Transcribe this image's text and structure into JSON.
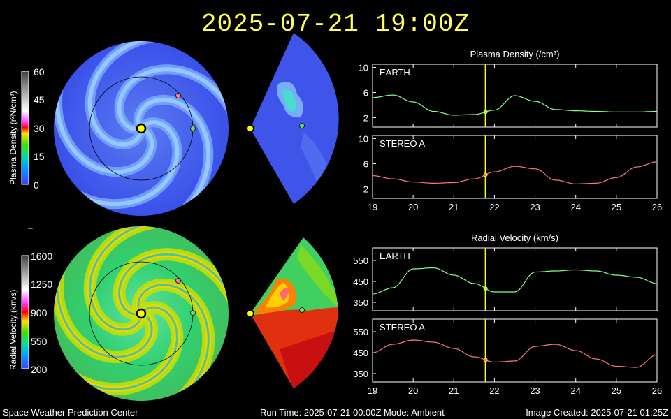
{
  "header": {
    "title": "2025-07-21  19:00Z"
  },
  "colorbars": {
    "density": {
      "label": "Plasma Density (r²N/cm³)",
      "ticks": [
        "60",
        "45",
        "30",
        "15",
        "0"
      ]
    },
    "velocity": {
      "label": "Radial Velocity (km/s)",
      "ticks": [
        "1600",
        "1250",
        "900",
        "550",
        "200"
      ]
    }
  },
  "footer": {
    "left": "Space Weather Prediction Center",
    "center": "Run Time: 2025-07-21 00:00Z  Mode: Ambient",
    "right": "Image Created: 2025-07-21 01:25Z"
  },
  "colors": {
    "earth_series": "#88ff88",
    "stereo_series": "#ff7777",
    "current_time_marker": "#ffff00",
    "sun": "#ffff00",
    "earth_marker": "#66dd66",
    "stereo_marker": "#ff7777"
  },
  "chart_data": [
    {
      "type": "line",
      "title": "Plasma Density (/cm³)",
      "panel": "EARTH",
      "x": [
        19,
        19.5,
        20,
        20.5,
        21,
        21.5,
        22,
        22.5,
        23,
        23.5,
        24,
        24.5,
        25,
        25.5,
        26
      ],
      "y": [
        5.2,
        5.6,
        4.5,
        3.0,
        2.4,
        2.5,
        3.2,
        5.5,
        4.6,
        3.3,
        3.1,
        3.0,
        2.9,
        2.9,
        3.0
      ],
      "ylim": [
        0.5,
        10.5
      ],
      "yticks": [
        "10",
        "6",
        "2"
      ],
      "marker_x": 21.78,
      "series_color": "#88ff88"
    },
    {
      "type": "line",
      "panel": "STEREO A",
      "x": [
        19,
        19.5,
        20,
        20.5,
        21,
        21.5,
        22,
        22.5,
        23,
        23.5,
        24,
        24.5,
        25,
        25.5,
        26
      ],
      "y": [
        4.1,
        3.6,
        3.1,
        2.9,
        3.0,
        3.6,
        4.7,
        5.6,
        5.2,
        3.4,
        2.8,
        2.9,
        3.8,
        5.5,
        6.3
      ],
      "ylim": [
        0.5,
        10.5
      ],
      "yticks": [
        "10",
        "6",
        "2"
      ],
      "xticks": [
        "19",
        "20",
        "21",
        "22",
        "23",
        "24",
        "25",
        "26"
      ],
      "marker_x": 21.78,
      "series_color": "#ff7777"
    },
    {
      "type": "line",
      "title": "Radial Velocity (km/s)",
      "panel": "EARTH",
      "x": [
        19,
        19.5,
        20,
        20.5,
        21,
        21.5,
        22,
        22.5,
        23,
        23.5,
        24,
        24.5,
        25,
        25.5,
        26
      ],
      "y": [
        390,
        420,
        510,
        515,
        480,
        440,
        400,
        400,
        495,
        500,
        505,
        500,
        480,
        470,
        440
      ],
      "ylim": [
        310,
        610
      ],
      "yticks": [
        "550",
        "450",
        "350"
      ],
      "marker_x": 21.78,
      "series_color": "#88ff88"
    },
    {
      "type": "line",
      "panel": "STEREO A",
      "x": [
        19,
        19.5,
        20,
        20.5,
        21,
        21.5,
        22,
        22.5,
        23,
        23.5,
        24,
        24.5,
        25,
        25.5,
        26
      ],
      "y": [
        450,
        490,
        510,
        500,
        470,
        430,
        405,
        410,
        480,
        490,
        460,
        420,
        385,
        380,
        440
      ],
      "ylim": [
        310,
        610
      ],
      "yticks": [
        "550",
        "450",
        "350"
      ],
      "xticks": [
        "19",
        "20",
        "21",
        "22",
        "23",
        "24",
        "25",
        "26"
      ],
      "marker_x": 21.78,
      "series_color": "#ff7777"
    }
  ]
}
